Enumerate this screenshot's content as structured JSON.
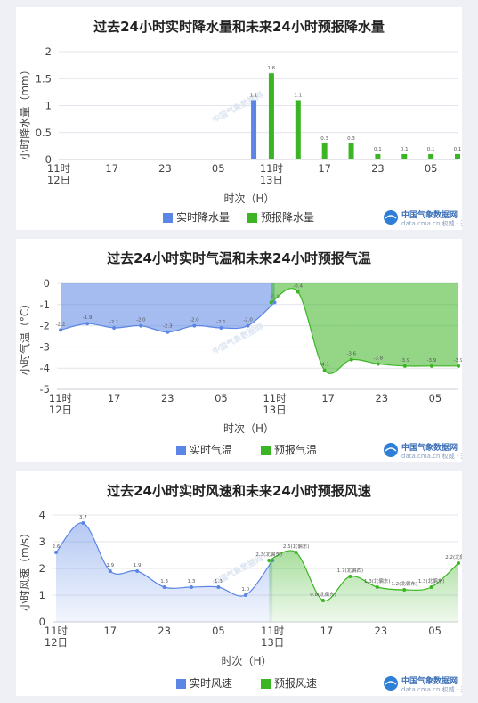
{
  "logo_text": "中国气象数据网",
  "logo_sub": "data.cma.cn 权威 · 开放 · 共享",
  "chart_data": [
    {
      "type": "bar",
      "title": "过去24小时实时降水量和未来24小时预报降水量",
      "xlabel": "时次（H）",
      "ylabel": "小时降水量（mm）",
      "ylim": [
        0,
        2
      ],
      "yticks": [
        "0",
        "0.5",
        "1",
        "1.5",
        "2"
      ],
      "xtick_labels": [
        {
          "hour": 11,
          "label": "11时",
          "label2": "12日"
        },
        {
          "hour": 17,
          "label": "17"
        },
        {
          "hour": 23,
          "label": "23"
        },
        {
          "hour": 5,
          "label": "05"
        },
        {
          "hour": 11,
          "label": "11时",
          "label2": "13日"
        },
        {
          "hour": 17,
          "label": "17"
        },
        {
          "hour": 23,
          "label": "23"
        },
        {
          "hour": 5,
          "label": "05"
        }
      ],
      "x": [
        "12日11时",
        "12日14时",
        "12日17时",
        "12日20时",
        "12日23时",
        "13日02时",
        "13日05时",
        "13日08时",
        "13日11时",
        "13日14时",
        "13日17时",
        "13日20时",
        "13日23时",
        "14日02时",
        "14日05时",
        "14日08时"
      ],
      "series": [
        {
          "name": "实时降水量",
          "color": "#5b86e5",
          "values": [
            0,
            0,
            0,
            0,
            0,
            0,
            0,
            1.1,
            null,
            null,
            null,
            null,
            null,
            null,
            null,
            null
          ],
          "labels": [
            "",
            "",
            "",
            "",
            "",
            "",
            "",
            "1.1",
            "",
            "",
            "",
            "",
            "",
            "",
            "",
            ""
          ]
        },
        {
          "name": "预报降水量",
          "color": "#3cb524",
          "values": [
            null,
            null,
            null,
            null,
            null,
            null,
            null,
            null,
            1.6,
            1.1,
            0.3,
            0.3,
            0.1,
            0.1,
            0.1,
            0.1
          ],
          "labels": [
            "",
            "",
            "",
            "",
            "",
            "",
            "",
            "",
            "1.6",
            "1.1",
            "0.3",
            "0.3",
            "0.1",
            "0.1",
            "0.1",
            "0.1"
          ]
        }
      ],
      "legend": "bottom-right",
      "grid": true
    },
    {
      "type": "area",
      "title": "过去24小时实时气温和未来24小时预报气温",
      "xlabel": "时次（H）",
      "ylabel": "小时气温（°C）",
      "ylim": [
        -5,
        0
      ],
      "yticks": [
        "0",
        "-1",
        "-2",
        "-3",
        "-4",
        "-5"
      ],
      "xtick_labels": [
        {
          "hour": 11,
          "label": "11时",
          "label2": "12日"
        },
        {
          "hour": 17,
          "label": "17"
        },
        {
          "hour": 23,
          "label": "23"
        },
        {
          "hour": 5,
          "label": "05"
        },
        {
          "hour": 11,
          "label": "11时",
          "label2": "13日"
        },
        {
          "hour": 17,
          "label": "17"
        },
        {
          "hour": 23,
          "label": "23"
        },
        {
          "hour": 5,
          "label": "05"
        }
      ],
      "series": [
        {
          "name": "实时气温",
          "color": "#5b86e5",
          "values": [
            -2.2,
            -1.9,
            -2.1,
            -2.0,
            -2.3,
            -2.0,
            -2.1,
            -2.0,
            -0.9
          ],
          "labels": [
            "-2.2",
            "-1.9",
            "-2.1",
            "-2.0",
            "-2.3",
            "-2.0",
            "-2.1",
            "-2.0",
            "-0.9"
          ]
        },
        {
          "name": "预报气温",
          "color": "#3cb524",
          "values": [
            -0.9,
            -0.4,
            -4.1,
            -3.6,
            -3.8,
            -3.9,
            -3.9,
            -3.9
          ],
          "labels": [
            "",
            "-0.4",
            "-4.1",
            "-3.6",
            "-3.8",
            "-3.9",
            "-3.9",
            "-3.9"
          ]
        }
      ],
      "legend": "bottom-center",
      "grid": true
    },
    {
      "type": "area",
      "title": "过去24小时实时风速和未来24小时预报风速",
      "xlabel": "时次（H）",
      "ylabel": "小时风速（m/s）",
      "ylim": [
        0,
        4
      ],
      "yticks": [
        "0",
        "1",
        "2",
        "3",
        "4"
      ],
      "xtick_labels": [
        {
          "hour": 11,
          "label": "11时",
          "label2": "12日"
        },
        {
          "hour": 17,
          "label": "17"
        },
        {
          "hour": 23,
          "label": "23"
        },
        {
          "hour": 5,
          "label": "05"
        },
        {
          "hour": 11,
          "label": "11时",
          "label2": "13日"
        },
        {
          "hour": 17,
          "label": "17"
        },
        {
          "hour": 23,
          "label": "23"
        },
        {
          "hour": 5,
          "label": "05"
        }
      ],
      "series": [
        {
          "name": "实时风速",
          "color": "#5b86e5",
          "values": [
            2.6,
            3.7,
            1.9,
            1.9,
            1.3,
            1.3,
            1.3,
            1.0,
            2.3
          ],
          "labels": [
            "2.6",
            "3.7",
            "1.9",
            "1.9",
            "1.3",
            "1.3",
            "1.3",
            "1.0",
            ""
          ]
        },
        {
          "name": "预报风速",
          "color": "#3cb524",
          "values": [
            2.3,
            2.6,
            0.8,
            1.7,
            1.3,
            1.2,
            1.3,
            2.2
          ],
          "labels": [
            "2.3(北偏东)",
            "2.6(北偏东)",
            "0.8(北偏东)",
            "1.7(北偏西)",
            "1.3(北偏东)",
            "1.2(北偏东)",
            "1.3(北偏东)",
            "2.2(北偏东)"
          ]
        }
      ],
      "legend": "bottom-center",
      "grid": true
    }
  ]
}
